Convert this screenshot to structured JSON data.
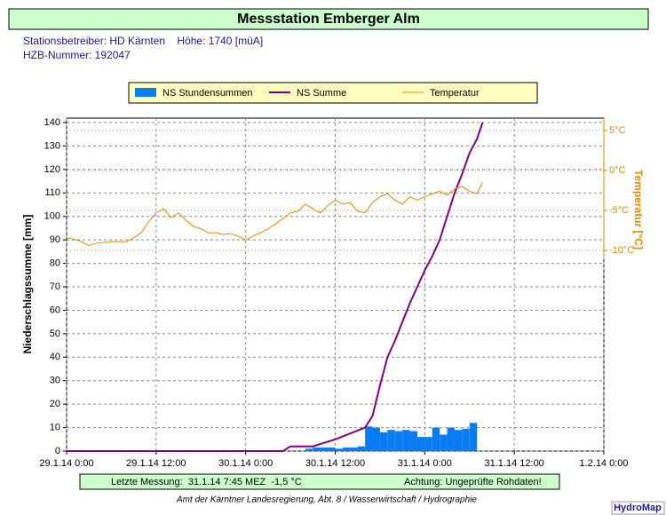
{
  "chart_data": {
    "type": "combo",
    "title": "Messstation Emberger Alm",
    "info": [
      "Stationsbetreiber: HD Kärnten    Höhe: 1740 [müA]",
      "HZB-Nummer: 192047"
    ],
    "ylabel": "Niederschlagssumme [mm]",
    "y2label": "Temperatur [°C]",
    "xlim": [
      "29.1.14 0:00",
      "1.2.14 0:00"
    ],
    "xticks": [
      "29.1.14 0:00",
      "29.1.14 12:00",
      "30.1.14 0:00",
      "30.1.14 12:00",
      "31.1.14 0:00",
      "31.1.14 12:00",
      "1.2.14 0:00"
    ],
    "ylim": [
      0,
      140
    ],
    "yticks": [
      0,
      10,
      20,
      30,
      40,
      50,
      60,
      70,
      80,
      90,
      100,
      110,
      120,
      130,
      140
    ],
    "y2lim": [
      -35.1,
      6
    ],
    "y2ticks": [
      {
        "value": -10,
        "label": "-10°C"
      },
      {
        "value": -5,
        "label": "-5°C"
      },
      {
        "value": 0,
        "label": "0°C"
      },
      {
        "value": 5,
        "label": "5°C"
      }
    ],
    "grid": true,
    "series": [
      {
        "name": "NS Stundensummen",
        "type": "bar",
        "color": "#0a7cf2",
        "x": [
          "30.1.14 9:00",
          "30.1.14 10:00",
          "30.1.14 11:00",
          "30.1.14 12:00",
          "30.1.14 13:00",
          "30.1.14 14:00",
          "30.1.14 15:00",
          "30.1.14 16:00",
          "30.1.14 17:00",
          "30.1.14 18:00",
          "30.1.14 19:00",
          "30.1.14 20:00",
          "30.1.14 21:00",
          "30.1.14 22:00",
          "30.1.14 23:00",
          "31.1.14 0:00",
          "31.1.14 1:00",
          "31.1.14 2:00",
          "31.1.14 3:00",
          "31.1.14 4:00",
          "31.1.14 5:00",
          "31.1.14 6:00",
          "31.1.14 7:00"
        ],
        "values": [
          1,
          1.5,
          1.5,
          1.5,
          1,
          1.5,
          1.5,
          2,
          10.5,
          10,
          8,
          9,
          8.5,
          9,
          8.5,
          6,
          6,
          10,
          7,
          10,
          9,
          9.5,
          12
        ]
      },
      {
        "name": "NS Summe",
        "type": "line",
        "color": "#800080",
        "x": [
          "29.1.14 0:00",
          "30.1.14 5:00",
          "30.1.14 6:00",
          "30.1.14 9:00",
          "30.1.14 10:00",
          "30.1.14 12:00",
          "30.1.14 14:00",
          "30.1.14 16:00",
          "30.1.14 17:00",
          "30.1.14 18:00",
          "30.1.14 19:00",
          "30.1.14 20:00",
          "30.1.14 21:00",
          "30.1.14 22:00",
          "30.1.14 23:00",
          "31.1.14 0:00",
          "31.1.14 1:00",
          "31.1.14 2:00",
          "31.1.14 3:00",
          "31.1.14 4:00",
          "31.1.14 5:00",
          "31.1.14 6:00",
          "31.1.14 7:00",
          "31.1.14 7:45"
        ],
        "values": [
          0,
          0,
          2,
          2,
          3,
          5,
          7.5,
          10,
          15,
          28,
          40,
          47,
          55,
          63,
          70,
          77,
          83,
          90,
          100,
          110,
          118,
          127,
          133,
          140
        ]
      },
      {
        "name": "Temperatur",
        "type": "line",
        "color": "#e08a00",
        "axis": "y2",
        "x": [
          "29.1.14 0:00",
          "29.1.14 1:00",
          "29.1.14 2:00",
          "29.1.14 3:00",
          "29.1.14 4:00",
          "29.1.14 5:00",
          "29.1.14 6:00",
          "29.1.14 7:00",
          "29.1.14 8:00",
          "29.1.14 9:00",
          "29.1.14 10:00",
          "29.1.14 11:00",
          "29.1.14 12:00",
          "29.1.14 13:00",
          "29.1.14 14:00",
          "29.1.14 15:00",
          "29.1.14 16:00",
          "29.1.14 17:00",
          "29.1.14 18:00",
          "29.1.14 19:00",
          "29.1.14 20:00",
          "29.1.14 21:00",
          "29.1.14 22:00",
          "29.1.14 23:00",
          "30.1.14 0:00",
          "30.1.14 1:00",
          "30.1.14 2:00",
          "30.1.14 3:00",
          "30.1.14 4:00",
          "30.1.14 5:00",
          "30.1.14 6:00",
          "30.1.14 7:00",
          "30.1.14 8:00",
          "30.1.14 9:00",
          "30.1.14 10:00",
          "30.1.14 11:00",
          "30.1.14 12:00",
          "30.1.14 13:00",
          "30.1.14 14:00",
          "30.1.14 15:00",
          "30.1.14 16:00",
          "30.1.14 17:00",
          "30.1.14 18:00",
          "30.1.14 19:00",
          "30.1.14 20:00",
          "30.1.14 21:00",
          "30.1.14 22:00",
          "30.1.14 23:00",
          "31.1.14 0:00",
          "31.1.14 1:00",
          "31.1.14 2:00",
          "31.1.14 3:00",
          "31.1.14 4:00",
          "31.1.14 5:00",
          "31.1.14 6:00",
          "31.1.14 7:00",
          "31.1.14 7:45"
        ],
        "values": [
          -8.4,
          -8.6,
          -8.9,
          -9.4,
          -9.1,
          -9.0,
          -8.9,
          -8.9,
          -8.9,
          -8.4,
          -7.8,
          -6.4,
          -5.3,
          -4.8,
          -5.9,
          -5.3,
          -6.2,
          -7.0,
          -7.3,
          -7.8,
          -7.8,
          -8.0,
          -7.9,
          -8.2,
          -8.7,
          -8.2,
          -7.8,
          -7.3,
          -6.7,
          -6.0,
          -5.3,
          -5.1,
          -4.2,
          -4.8,
          -5.3,
          -4.4,
          -3.7,
          -4.2,
          -4.0,
          -5.1,
          -5.3,
          -4.0,
          -3.3,
          -2.9,
          -3.7,
          -4.2,
          -3.3,
          -3.7,
          -3.3,
          -2.9,
          -2.6,
          -3.1,
          -2.3,
          -2.0,
          -2.6,
          -2.9,
          -1.5
        ]
      }
    ],
    "footer": {
      "last": "Letzte Messung:  31.1.14 7:45 MEZ  -1,5 °C",
      "warning": "Achtung: Ungeprüfte Rohdaten!",
      "credit": "Amt der Kärntner Landesregierung, Abt. 8 / Wasserwirtschaft / Hydrographie",
      "badge": "HydroMap"
    }
  }
}
